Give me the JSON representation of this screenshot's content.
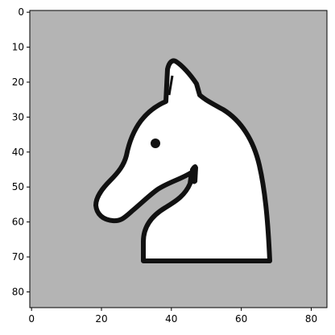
{
  "image": {
    "description_kind": "pixelated-chess-knight",
    "extent": {
      "x": [
        -0.5,
        84.5
      ],
      "y": [
        84.5,
        -0.5
      ]
    },
    "colors": {
      "background_gray": "#b4b4b4",
      "figure_white": "#ffffff",
      "outline_black": "#111111",
      "eye": "#111111"
    }
  },
  "axes": {
    "x_ticks": [
      0,
      20,
      40,
      60,
      80
    ],
    "y_ticks": [
      0,
      10,
      20,
      30,
      40,
      50,
      60,
      70,
      80
    ]
  }
}
